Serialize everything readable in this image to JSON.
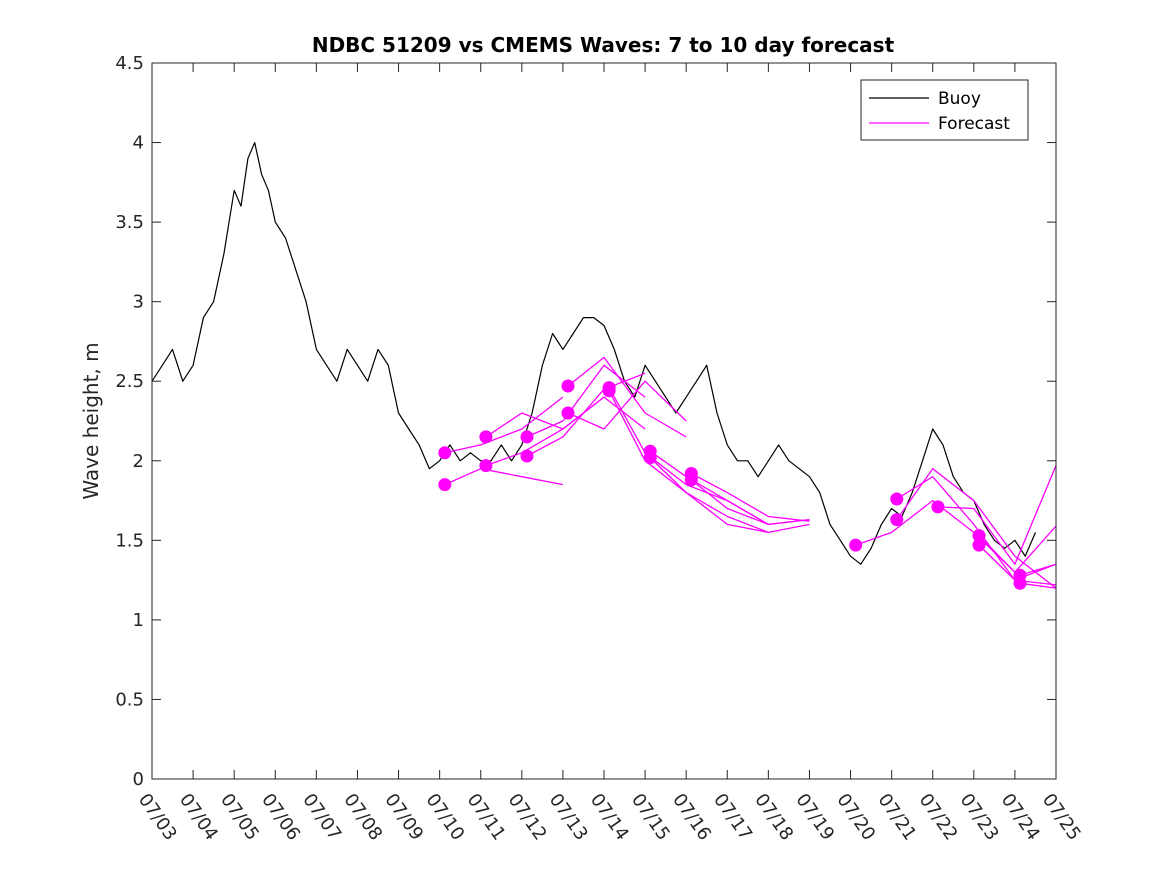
{
  "chart_data": {
    "type": "line",
    "title": "NDBC 51209 vs CMEMS Waves: 7 to 10 day forecast",
    "xlabel": "",
    "ylabel": "Wave height, m",
    "ylim": [
      0,
      4.5
    ],
    "yticks": [
      0,
      0.5,
      1,
      1.5,
      2,
      2.5,
      3,
      3.5,
      4,
      4.5
    ],
    "ytick_labels": [
      "0",
      "0.5",
      "1",
      "1.5",
      "2",
      "2.5",
      "3",
      "3.5",
      "4",
      "4.5"
    ],
    "xlim": [
      "07/03",
      "07/25"
    ],
    "xtick_labels": [
      "07/03",
      "07/04",
      "07/05",
      "07/06",
      "07/07",
      "07/08",
      "07/09",
      "07/10",
      "07/11",
      "07/12",
      "07/13",
      "07/14",
      "07/15",
      "07/16",
      "07/17",
      "07/18",
      "07/19",
      "07/20",
      "07/21",
      "07/22",
      "07/23",
      "07/24",
      "07/25"
    ],
    "legend_position": "top-right",
    "grid": false,
    "legend": [
      {
        "label": "Buoy",
        "color": "#000000"
      },
      {
        "label": "Forecast",
        "color": "#ff00ff"
      }
    ],
    "series": [
      {
        "name": "Buoy",
        "color": "#000000",
        "x": [
          "07/03",
          "07/03 06:00",
          "07/03 12:00",
          "07/03 18:00",
          "07/04",
          "07/04 06:00",
          "07/04 12:00",
          "07/04 18:00",
          "07/05",
          "07/05 04:00",
          "07/05 08:00",
          "07/05 12:00",
          "07/05 16:00",
          "07/05 20:00",
          "07/06",
          "07/06 06:00",
          "07/06 12:00",
          "07/06 18:00",
          "07/07",
          "07/07 06:00",
          "07/07 12:00",
          "07/07 18:00",
          "07/08",
          "07/08 06:00",
          "07/08 12:00",
          "07/08 18:00",
          "07/09",
          "07/09 06:00",
          "07/09 12:00",
          "07/09 18:00",
          "07/10",
          "07/10 06:00",
          "07/10 12:00",
          "07/10 18:00",
          "07/11",
          "07/11 06:00",
          "07/11 12:00",
          "07/11 18:00",
          "07/12",
          "07/12 06:00",
          "07/12 12:00",
          "07/12 18:00",
          "07/13",
          "07/13 06:00",
          "07/13 12:00",
          "07/13 18:00",
          "07/14",
          "07/14 06:00",
          "07/14 12:00",
          "07/14 18:00",
          "07/15",
          "07/15 06:00",
          "07/15 12:00",
          "07/15 18:00",
          "07/16",
          "07/16 06:00",
          "07/16 12:00",
          "07/16 18:00",
          "07/17",
          "07/17 06:00",
          "07/17 12:00",
          "07/17 18:00",
          "07/18",
          "07/18 06:00",
          "07/18 12:00",
          "07/18 18:00",
          "07/19",
          "07/19 06:00",
          "07/19 12:00",
          "07/19 18:00",
          "07/20",
          "07/20 06:00",
          "07/20 12:00",
          "07/20 18:00",
          "07/21",
          "07/21 06:00",
          "07/21 12:00",
          "07/21 18:00",
          "07/22",
          "07/22 06:00",
          "07/22 12:00",
          "07/22 18:00",
          "07/23",
          "07/23 06:00",
          "07/23 12:00",
          "07/23 18:00",
          "07/24",
          "07/24 06:00",
          "07/24 12:00"
        ],
        "values": [
          2.5,
          2.6,
          2.7,
          2.5,
          2.6,
          2.9,
          3.0,
          3.3,
          3.7,
          3.6,
          3.9,
          4.0,
          3.8,
          3.7,
          3.5,
          3.4,
          3.2,
          3.0,
          2.7,
          2.6,
          2.5,
          2.7,
          2.6,
          2.5,
          2.7,
          2.6,
          2.3,
          2.2,
          2.1,
          1.95,
          2.0,
          2.1,
          2.0,
          2.05,
          2.0,
          2.0,
          2.1,
          2.0,
          2.1,
          2.3,
          2.6,
          2.8,
          2.7,
          2.8,
          2.9,
          2.9,
          2.85,
          2.7,
          2.5,
          2.4,
          2.6,
          2.5,
          2.4,
          2.3,
          2.4,
          2.5,
          2.6,
          2.3,
          2.1,
          2.0,
          2.0,
          1.9,
          2.0,
          2.1,
          2.0,
          1.95,
          1.9,
          1.8,
          1.6,
          1.5,
          1.4,
          1.35,
          1.45,
          1.6,
          1.7,
          1.65,
          1.8,
          2.0,
          2.2,
          2.1,
          1.9,
          1.8,
          1.75,
          1.6,
          1.5,
          1.45,
          1.5,
          1.4,
          1.55
        ]
      },
      {
        "name": "Forecast",
        "color": "#ff00ff",
        "lines": [
          {
            "x": [
              "07/10 03:00",
              "07/11",
              "07/12",
              "07/13"
            ],
            "values": [
              2.05,
              2.1,
              2.2,
              2.4
            ]
          },
          {
            "x": [
              "07/10 03:00",
              "07/11",
              "07/12",
              "07/13"
            ],
            "values": [
              1.85,
              1.95,
              1.9,
              1.85
            ]
          },
          {
            "x": [
              "07/11 03:00",
              "07/12",
              "07/13",
              "07/14",
              "07/15"
            ],
            "values": [
              2.15,
              2.3,
              2.2,
              2.4,
              2.2
            ]
          },
          {
            "x": [
              "07/11 03:00",
              "07/12",
              "07/13",
              "07/14"
            ],
            "values": [
              1.97,
              2.05,
              2.2,
              2.4
            ]
          },
          {
            "x": [
              "07/12 03:00",
              "07/13",
              "07/14",
              "07/15"
            ],
            "values": [
              2.15,
              2.25,
              2.6,
              2.4
            ]
          },
          {
            "x": [
              "07/12 03:00",
              "07/13",
              "07/14",
              "07/15"
            ],
            "values": [
              2.03,
              2.15,
              2.45,
              2.55
            ]
          },
          {
            "x": [
              "07/13 03:00",
              "07/14",
              "07/15",
              "07/16"
            ],
            "values": [
              2.47,
              2.65,
              2.3,
              2.15
            ]
          },
          {
            "x": [
              "07/13 03:00",
              "07/14",
              "07/15",
              "07/16"
            ],
            "values": [
              2.3,
              2.2,
              2.5,
              2.25
            ]
          },
          {
            "x": [
              "07/14 03:00",
              "07/15",
              "07/16",
              "07/17",
              "07/18"
            ],
            "values": [
              2.46,
              2.05,
              1.85,
              1.75,
              1.6
            ]
          },
          {
            "x": [
              "07/14 03:00",
              "07/15",
              "07/16",
              "07/17",
              "07/18"
            ],
            "values": [
              2.44,
              2.0,
              1.8,
              1.6,
              1.55
            ]
          },
          {
            "x": [
              "07/15 03:00",
              "07/16",
              "07/17",
              "07/18",
              "07/19"
            ],
            "values": [
              2.06,
              1.9,
              1.75,
              1.6,
              1.63
            ]
          },
          {
            "x": [
              "07/15 03:00",
              "07/16",
              "07/17",
              "07/18",
              "07/19"
            ],
            "values": [
              2.02,
              1.8,
              1.65,
              1.55,
              1.6
            ]
          },
          {
            "x": [
              "07/16 03:00",
              "07/17",
              "07/18",
              "07/19"
            ],
            "values": [
              1.92,
              1.8,
              1.65,
              1.62
            ]
          },
          {
            "x": [
              "07/16 03:00",
              "07/17",
              "07/18",
              "07/19"
            ],
            "values": [
              1.88,
              1.7,
              1.6,
              1.63
            ]
          },
          {
            "x": [
              "07/20 03:00",
              "07/21",
              "07/22",
              "07/23",
              "07/24"
            ],
            "values": [
              1.47,
              1.55,
              1.75,
              1.55,
              1.3
            ]
          },
          {
            "x": [
              "07/21 03:00",
              "07/22",
              "07/23",
              "07/24",
              "07/25"
            ],
            "values": [
              1.76,
              1.9,
              1.6,
              1.25,
              1.35
            ]
          },
          {
            "x": [
              "07/21 03:00",
              "07/22",
              "07/23",
              "07/24",
              "07/25"
            ],
            "values": [
              1.63,
              1.95,
              1.75,
              1.4,
              1.2
            ]
          },
          {
            "x": [
              "07/22 03:00",
              "07/23",
              "07/24",
              "07/25"
            ],
            "values": [
              1.71,
              1.7,
              1.35,
              1.97
            ]
          },
          {
            "x": [
              "07/23 03:00",
              "07/24",
              "07/25"
            ],
            "values": [
              1.53,
              1.3,
              1.59
            ]
          },
          {
            "x": [
              "07/23 03:00",
              "07/24",
              "07/25"
            ],
            "values": [
              1.47,
              1.25,
              1.22
            ]
          },
          {
            "x": [
              "07/24 03:00",
              "07/25"
            ],
            "values": [
              1.28,
              1.35
            ]
          },
          {
            "x": [
              "07/24 03:00",
              "07/25"
            ],
            "values": [
              1.23,
              1.2
            ]
          }
        ],
        "points": [
          {
            "x": "07/10 03:00",
            "y": 2.05
          },
          {
            "x": "07/10 03:00",
            "y": 1.85
          },
          {
            "x": "07/11 03:00",
            "y": 2.15
          },
          {
            "x": "07/11 03:00",
            "y": 1.97
          },
          {
            "x": "07/12 03:00",
            "y": 2.15
          },
          {
            "x": "07/12 03:00",
            "y": 2.03
          },
          {
            "x": "07/13 03:00",
            "y": 2.47
          },
          {
            "x": "07/13 03:00",
            "y": 2.3
          },
          {
            "x": "07/14 03:00",
            "y": 2.46
          },
          {
            "x": "07/14 03:00",
            "y": 2.44
          },
          {
            "x": "07/15 03:00",
            "y": 2.06
          },
          {
            "x": "07/15 03:00",
            "y": 2.02
          },
          {
            "x": "07/16 03:00",
            "y": 1.92
          },
          {
            "x": "07/16 03:00",
            "y": 1.88
          },
          {
            "x": "07/20 03:00",
            "y": 1.47
          },
          {
            "x": "07/21 03:00",
            "y": 1.76
          },
          {
            "x": "07/21 03:00",
            "y": 1.63
          },
          {
            "x": "07/22 03:00",
            "y": 1.71
          },
          {
            "x": "07/23 03:00",
            "y": 1.53
          },
          {
            "x": "07/23 03:00",
            "y": 1.47
          },
          {
            "x": "07/24 03:00",
            "y": 1.28
          },
          {
            "x": "07/24 03:00",
            "y": 1.23
          }
        ]
      }
    ]
  }
}
